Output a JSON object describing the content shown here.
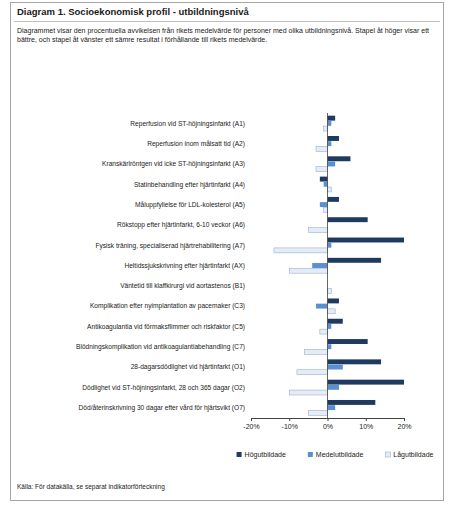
{
  "chart_data": {
    "type": "bar",
    "orientation": "horizontal",
    "title": "Diagram 1. Socioekonomisk profil - utbildningsnivå",
    "subtitle": "Diagrammet visar den procentuella avvikelsen från rikets medelvärde för personer med olika utbildningsnivå. Stapel åt höger visar ett bättre, och stapel åt vänster ett sämre resultat i förhållande till rikets medelvärde.",
    "annotations": [
      "Källa: För datakälla, se separat indikatorförteckning"
    ],
    "categories": [
      "Reperfusion vid ST-höjningsinfarkt (A1)",
      "Reperfusion inom målsatt tid (A2)",
      "Kranskärlröntgen vid icke ST-höjningsinfarkt (A3)",
      "Statinbehandling efter hjärtinfarkt (A4)",
      "Måluppfyllelse för LDL-kolesterol (A5)",
      "Rökstopp efter hjärtinfarkt, 6-10 veckor (A6)",
      "Fysisk träning, specialiserad hjärtrehabilitering (A7)",
      "Heltidssjukskrivning efter hjärtinfarkt (AX)",
      "Väntetid till klaffkirurgi vid aortastenos (B1)",
      "Komplikation efter nyimplantation av pacemaker (C3)",
      "Antikoagulantia vid förmaksflimmer och riskfaktor (C5)",
      "Blödningskomplikation vid antikoagulantiabehandling (C7)",
      "28-dagarsdödlighet vid hjärtinfarkt (O1)",
      "Dödlighet vid ST-höjningsinfarkt, 28 och 365 dagar (O2)",
      "Död/återinskrivning 30 dagar efter vård för hjärtsvikt (O7)"
    ],
    "series": [
      {
        "name": "Högutbildade",
        "color": "#1f3a60",
        "values": [
          2,
          3,
          6,
          -2,
          3,
          10.5,
          20,
          14,
          0,
          3,
          4,
          10.5,
          14,
          20,
          12.5
        ]
      },
      {
        "name": "Medelutbildade",
        "color": "#5a8fd0",
        "values": [
          1,
          1,
          2,
          -1,
          -2,
          0,
          1,
          -4,
          0,
          -3,
          1,
          1,
          4,
          3,
          2
        ]
      },
      {
        "name": "Lågutbildade",
        "color": "#e4ecf7",
        "values": [
          -1,
          -3,
          -3,
          1,
          -1,
          -5,
          -14,
          -10,
          1,
          2,
          -2,
          -6,
          -8,
          -10,
          -5
        ]
      }
    ],
    "xlim": [
      -20,
      20
    ],
    "xticks": [
      {
        "value": -20,
        "label": "-20%"
      },
      {
        "value": -10,
        "label": "-10%"
      },
      {
        "value": 0,
        "label": "0%"
      },
      {
        "value": 10,
        "label": "10%"
      },
      {
        "value": 20,
        "label": "20%"
      }
    ],
    "grid": false,
    "legend": "bottom"
  }
}
